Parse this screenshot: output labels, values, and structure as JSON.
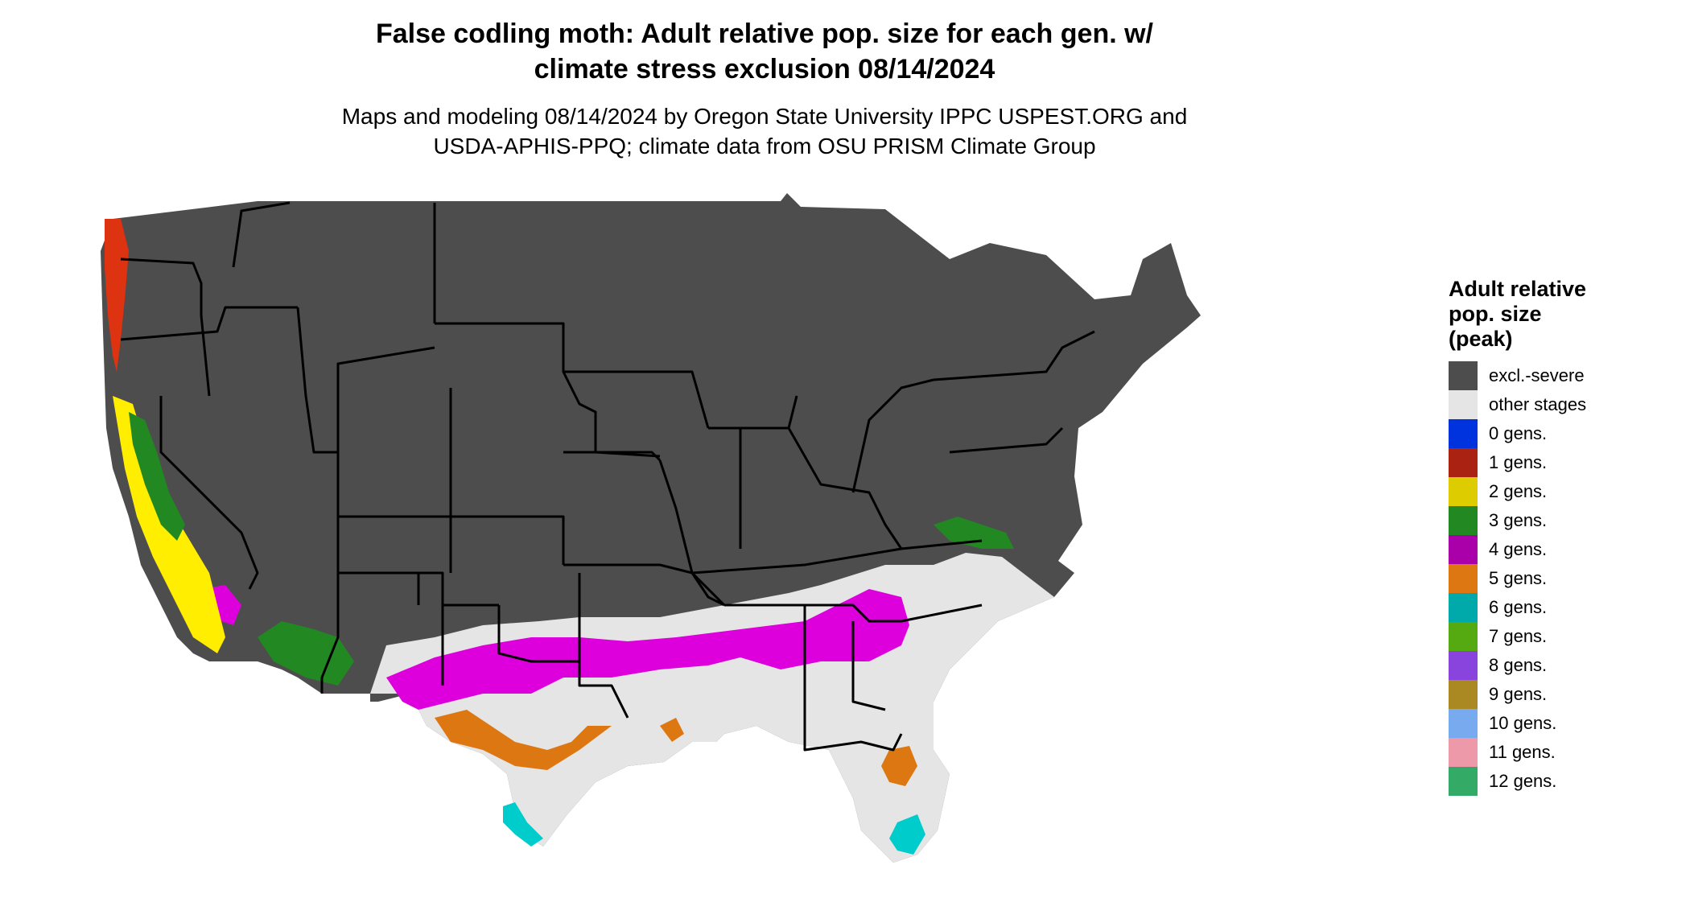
{
  "title_line1": "False codling moth: Adult relative pop. size for each gen. w/",
  "title_line2": "climate stress exclusion 08/14/2024",
  "subtitle_line1": "Maps and modeling 08/14/2024 by Oregon State University IPPC USPEST.ORG and",
  "subtitle_line2": "USDA-APHIS-PPQ; climate data from OSU PRISM Climate Group",
  "legend": {
    "title_lines": [
      "Adult relative",
      "pop. size",
      "(peak)"
    ],
    "items": [
      {
        "label": "excl.-severe",
        "color": "#4d4d4d"
      },
      {
        "label": "other stages",
        "color": "#e5e5e5"
      },
      {
        "label": "0 gens.",
        "color": "#0033dd"
      },
      {
        "label": "1 gens.",
        "color": "#aa2211"
      },
      {
        "label": "2 gens.",
        "color": "#ddcc00"
      },
      {
        "label": "3 gens.",
        "color": "#228822"
      },
      {
        "label": "4 gens.",
        "color": "#aa00aa"
      },
      {
        "label": "5 gens.",
        "color": "#dd7711"
      },
      {
        "label": "6 gens.",
        "color": "#00aaaa"
      },
      {
        "label": "7 gens.",
        "color": "#55aa11"
      },
      {
        "label": "8 gens.",
        "color": "#8844dd"
      },
      {
        "label": "9 gens.",
        "color": "#aa8822"
      },
      {
        "label": "10 gens.",
        "color": "#77aaee"
      },
      {
        "label": "11 gens.",
        "color": "#ee99aa"
      },
      {
        "label": "12 gens.",
        "color": "#33aa66"
      }
    ]
  },
  "map_colors": {
    "land_excluded": "#4d4d4d",
    "other_stages": "#e5e5e5",
    "gen4": "#dd00dd",
    "gen5": "#dd7711",
    "gen6": "#00cccc",
    "gen3": "#228822",
    "gen2": "#ffee00",
    "gen1": "#dd3311",
    "gen7": "#55bb33",
    "border": "#000000"
  }
}
